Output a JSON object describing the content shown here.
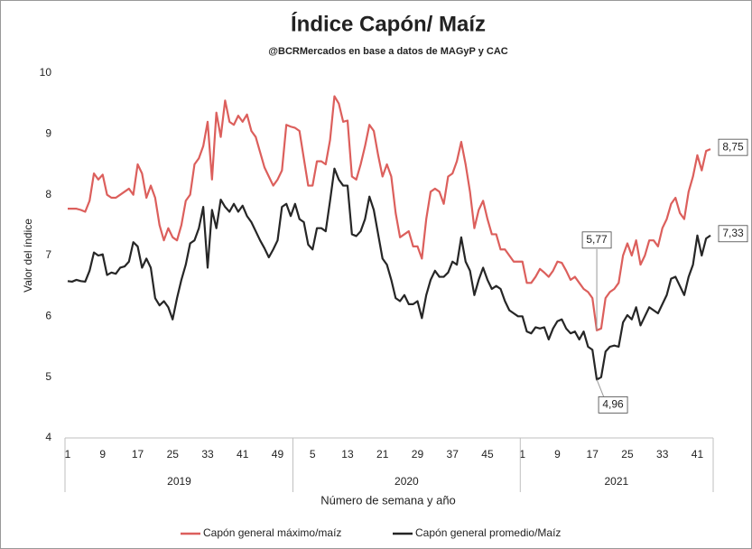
{
  "chart_data": {
    "type": "line",
    "title": "Índice Capón/ Maíz",
    "subtitle": "@BCRMercados  en base a datos de MAGyP y CAC",
    "y_label": "Valor del índice",
    "x_label": "Número de semana y año",
    "categories": [
      "1",
      null,
      null,
      null,
      null,
      null,
      null,
      null,
      "9",
      null,
      null,
      null,
      null,
      null,
      null,
      null,
      "17",
      null,
      null,
      null,
      null,
      null,
      null,
      null,
      "25",
      null,
      null,
      null,
      null,
      null,
      null,
      null,
      "33",
      null,
      null,
      null,
      null,
      null,
      null,
      null,
      "41",
      null,
      null,
      null,
      null,
      null,
      null,
      null,
      "49",
      null,
      null,
      null,
      null,
      null,
      null,
      null,
      "5",
      null,
      null,
      null,
      null,
      null,
      null,
      null,
      "13",
      null,
      null,
      null,
      null,
      null,
      null,
      null,
      "21",
      null,
      null,
      null,
      null,
      null,
      null,
      null,
      "29",
      null,
      null,
      null,
      null,
      null,
      null,
      null,
      "37",
      null,
      null,
      null,
      null,
      null,
      null,
      null,
      "45",
      null,
      null,
      null,
      null,
      null,
      null,
      null,
      "1",
      null,
      null,
      null,
      null,
      null,
      null,
      null,
      "9",
      null,
      null,
      null,
      null,
      null,
      null,
      null,
      "17",
      null,
      null,
      null,
      null,
      null,
      null,
      null,
      "25",
      null,
      null,
      null,
      null,
      null,
      null,
      null,
      "33",
      null,
      null,
      null,
      null,
      null,
      null,
      null,
      "41",
      null,
      null,
      null
    ],
    "groups": [
      {
        "name": "2019",
        "size": 52
      },
      {
        "name": "2020",
        "size": 52
      },
      {
        "name": "2021",
        "size": 44
      }
    ],
    "ylim": [
      4,
      10
    ],
    "yticks": [
      4,
      5,
      6,
      7,
      8,
      9,
      10
    ],
    "grid": false,
    "legend": "bottom",
    "series": [
      {
        "name": "Capón general máximo/maíz",
        "color": "#dc5f5c",
        "values": [
          7.77,
          7.77,
          7.77,
          7.75,
          7.72,
          7.9,
          8.35,
          8.25,
          8.33,
          8.0,
          7.95,
          7.95,
          8.0,
          8.05,
          8.1,
          8.0,
          8.5,
          8.35,
          7.95,
          8.15,
          7.95,
          7.5,
          7.25,
          7.45,
          7.3,
          7.25,
          7.5,
          7.9,
          8.0,
          8.5,
          8.6,
          8.8,
          9.2,
          8.25,
          9.35,
          8.95,
          9.55,
          9.2,
          9.15,
          9.3,
          9.2,
          9.32,
          9.05,
          8.95,
          8.7,
          8.45,
          8.3,
          8.15,
          8.25,
          8.4,
          9.15,
          9.12,
          9.1,
          9.05,
          8.6,
          8.15,
          8.15,
          8.55,
          8.55,
          8.5,
          8.9,
          9.62,
          9.5,
          9.2,
          9.22,
          8.3,
          8.25,
          8.5,
          8.8,
          9.15,
          9.05,
          8.65,
          8.3,
          8.5,
          8.3,
          7.7,
          7.3,
          7.35,
          7.4,
          7.15,
          7.15,
          6.95,
          7.6,
          8.05,
          8.1,
          8.05,
          7.85,
          8.3,
          8.35,
          8.55,
          8.87,
          8.5,
          8.05,
          7.45,
          7.75,
          7.9,
          7.6,
          7.35,
          7.35,
          7.1,
          7.1,
          7.0,
          6.9,
          6.9,
          6.9,
          6.55,
          6.55,
          6.65,
          6.78,
          6.72,
          6.65,
          6.75,
          6.9,
          6.88,
          6.75,
          6.6,
          6.65,
          6.55,
          6.45,
          6.4,
          6.3,
          5.77,
          5.8,
          6.3,
          6.4,
          6.45,
          6.55,
          7.0,
          7.2,
          7.0,
          7.25,
          6.85,
          7.0,
          7.25,
          7.25,
          7.15,
          7.45,
          7.6,
          7.85,
          7.95,
          7.7,
          7.6,
          8.05,
          8.3,
          8.65,
          8.4,
          8.72,
          8.75
        ]
      },
      {
        "name": "Capón general promedio/Maíz",
        "color": "#262626",
        "values": [
          6.58,
          6.57,
          6.6,
          6.58,
          6.57,
          6.75,
          7.05,
          7.0,
          7.02,
          6.68,
          6.72,
          6.7,
          6.8,
          6.82,
          6.9,
          7.22,
          7.15,
          6.8,
          6.95,
          6.8,
          6.3,
          6.18,
          6.25,
          6.15,
          5.95,
          6.3,
          6.6,
          6.85,
          7.2,
          7.25,
          7.45,
          7.8,
          6.8,
          7.75,
          7.45,
          7.92,
          7.8,
          7.72,
          7.85,
          7.72,
          7.82,
          7.65,
          7.55,
          7.4,
          7.25,
          7.12,
          6.97,
          7.1,
          7.25,
          7.8,
          7.85,
          7.65,
          7.85,
          7.6,
          7.55,
          7.18,
          7.1,
          7.45,
          7.45,
          7.4,
          7.9,
          8.43,
          8.25,
          8.15,
          8.15,
          7.35,
          7.32,
          7.4,
          7.6,
          7.97,
          7.75,
          7.35,
          6.95,
          6.85,
          6.6,
          6.3,
          6.25,
          6.35,
          6.2,
          6.2,
          6.25,
          5.97,
          6.35,
          6.6,
          6.75,
          6.65,
          6.65,
          6.72,
          6.9,
          6.85,
          7.3,
          6.9,
          6.75,
          6.35,
          6.6,
          6.8,
          6.6,
          6.45,
          6.5,
          6.45,
          6.25,
          6.1,
          6.05,
          6.0,
          6.0,
          5.75,
          5.72,
          5.82,
          5.8,
          5.82,
          5.62,
          5.8,
          5.92,
          5.95,
          5.8,
          5.72,
          5.75,
          5.62,
          5.75,
          5.5,
          5.45,
          4.96,
          5.0,
          5.42,
          5.5,
          5.52,
          5.5,
          5.9,
          6.02,
          5.95,
          6.15,
          5.85,
          6.0,
          6.15,
          6.1,
          6.05,
          6.2,
          6.35,
          6.62,
          6.65,
          6.5,
          6.35,
          6.65,
          6.85,
          7.33,
          7.0,
          7.28,
          7.33
        ]
      }
    ],
    "annotations": [
      {
        "label": "5,77",
        "series": 0,
        "index": 121,
        "position": "above"
      },
      {
        "label": "4,96",
        "series": 1,
        "index": 121,
        "position": "below"
      },
      {
        "label": "8,75",
        "series": 0,
        "index": 147,
        "position": "right"
      },
      {
        "label": "7,33",
        "series": 1,
        "index": 147,
        "position": "right"
      }
    ]
  }
}
